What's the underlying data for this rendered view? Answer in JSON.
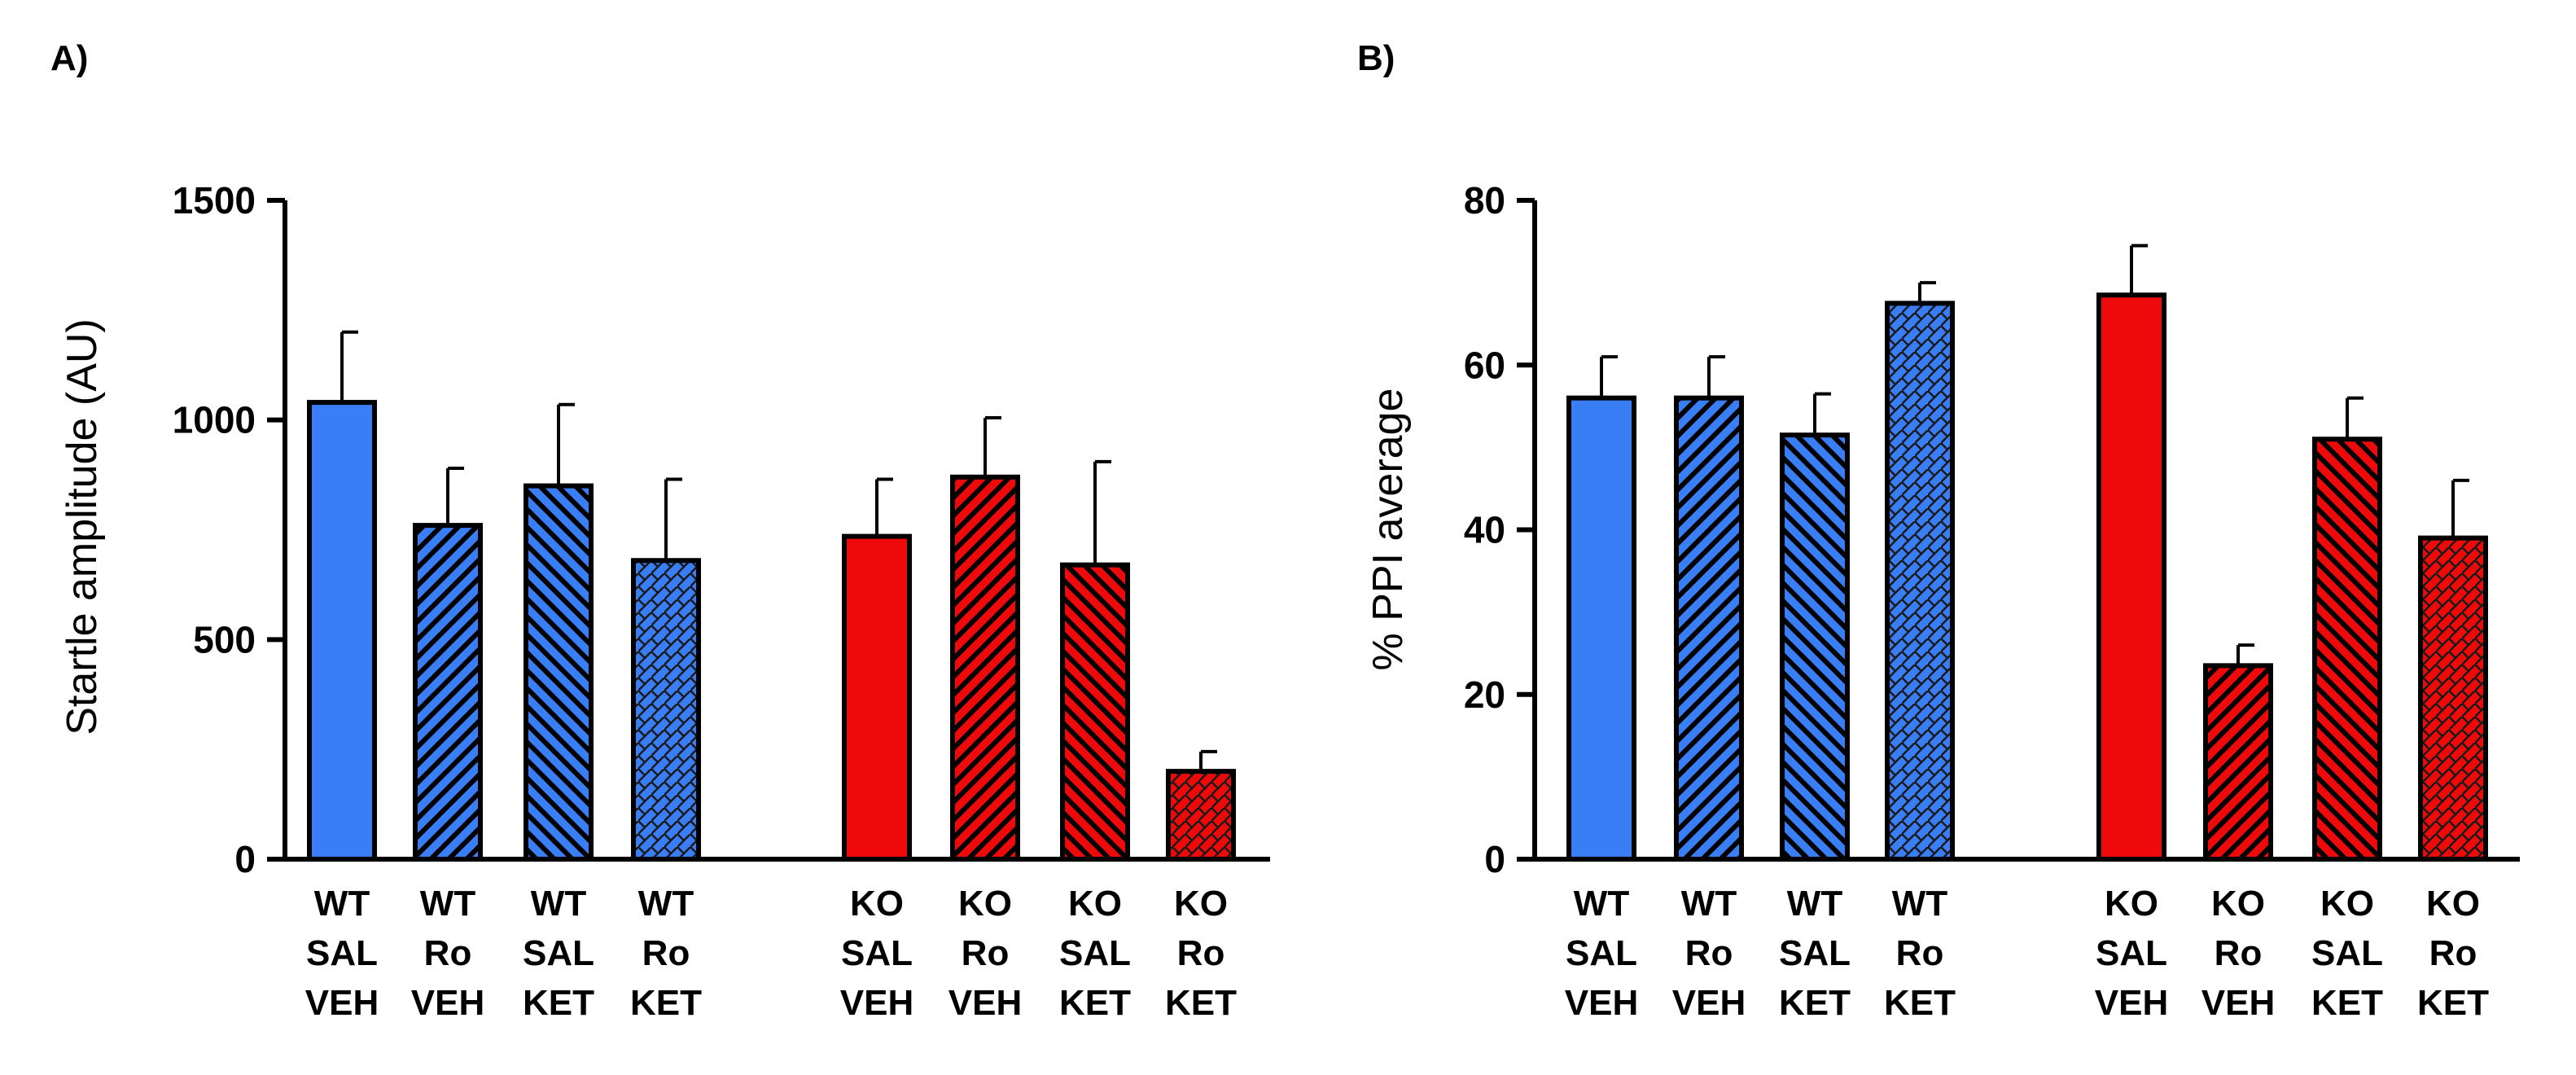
{
  "colors": {
    "wt": "#3a7ef6",
    "ko": "#ee0a0a"
  },
  "chart_data": [
    {
      "type": "bar",
      "panel_label": "A)",
      "title": "",
      "xlabel": "",
      "ylabel": "Startle amplitude (AU)",
      "ylim": [
        0,
        1500
      ],
      "yticks": [
        "0",
        "500",
        "1000",
        "1500"
      ],
      "ytick_values": [
        0,
        500,
        1000,
        1500
      ],
      "bars": [
        {
          "lines": [
            "WT",
            "SAL",
            "VEH"
          ],
          "value": 1040,
          "error": 160,
          "group": "wt",
          "pattern": "solid"
        },
        {
          "lines": [
            "WT",
            "Ro",
            "VEH"
          ],
          "value": 760,
          "error": 130,
          "group": "wt",
          "pattern": "diag-right"
        },
        {
          "lines": [
            "WT",
            "SAL",
            "KET"
          ],
          "value": 850,
          "error": 185,
          "group": "wt",
          "pattern": "diag-left"
        },
        {
          "lines": [
            "WT",
            "Ro",
            "KET"
          ],
          "value": 680,
          "error": 185,
          "group": "wt",
          "pattern": "weave"
        },
        {
          "lines": [
            "KO",
            "SAL",
            "VEH"
          ],
          "value": 735,
          "error": 130,
          "group": "ko",
          "pattern": "solid"
        },
        {
          "lines": [
            "KO",
            "Ro",
            "VEH"
          ],
          "value": 870,
          "error": 135,
          "group": "ko",
          "pattern": "diag-right"
        },
        {
          "lines": [
            "KO",
            "SAL",
            "KET"
          ],
          "value": 670,
          "error": 235,
          "group": "ko",
          "pattern": "diag-left"
        },
        {
          "lines": [
            "KO",
            "Ro",
            "KET"
          ],
          "value": 200,
          "error": 45,
          "group": "ko",
          "pattern": "weave"
        }
      ]
    },
    {
      "type": "bar",
      "panel_label": "B)",
      "title": "",
      "xlabel": "",
      "ylabel": "% PPI average",
      "ylim": [
        0,
        80
      ],
      "yticks": [
        "0",
        "20",
        "40",
        "60",
        "80"
      ],
      "ytick_values": [
        0,
        20,
        40,
        60,
        80
      ],
      "bars": [
        {
          "lines": [
            "WT",
            "SAL",
            "VEH"
          ],
          "value": 56,
          "error": 5,
          "group": "wt",
          "pattern": "solid"
        },
        {
          "lines": [
            "WT",
            "Ro",
            "VEH"
          ],
          "value": 56,
          "error": 5,
          "group": "wt",
          "pattern": "diag-right"
        },
        {
          "lines": [
            "WT",
            "SAL",
            "KET"
          ],
          "value": 51.5,
          "error": 5,
          "group": "wt",
          "pattern": "diag-left"
        },
        {
          "lines": [
            "WT",
            "Ro",
            "KET"
          ],
          "value": 67.5,
          "error": 2.5,
          "group": "wt",
          "pattern": "weave"
        },
        {
          "lines": [
            "KO",
            "SAL",
            "VEH"
          ],
          "value": 68.5,
          "error": 6,
          "group": "ko",
          "pattern": "solid"
        },
        {
          "lines": [
            "KO",
            "Ro",
            "VEH"
          ],
          "value": 23.5,
          "error": 2.5,
          "group": "ko",
          "pattern": "diag-right"
        },
        {
          "lines": [
            "KO",
            "SAL",
            "KET"
          ],
          "value": 51,
          "error": 5,
          "group": "ko",
          "pattern": "diag-left"
        },
        {
          "lines": [
            "KO",
            "Ro",
            "KET"
          ],
          "value": 39,
          "error": 7,
          "group": "ko",
          "pattern": "weave"
        }
      ]
    }
  ]
}
